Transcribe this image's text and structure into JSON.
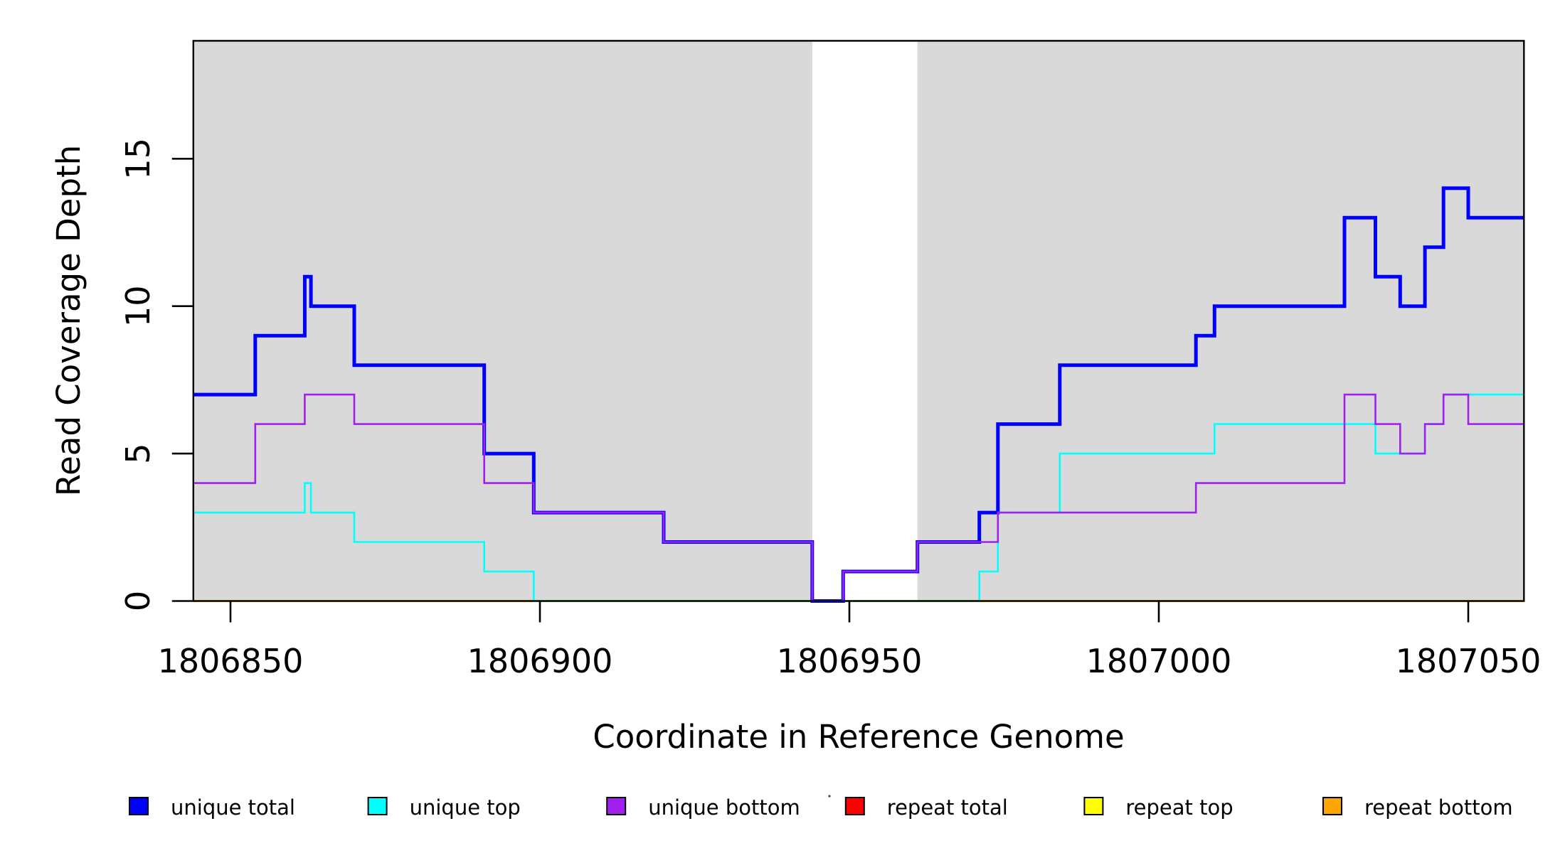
{
  "chart_data": {
    "type": "line",
    "subtype": "step-coverage-plot",
    "title": "",
    "xlabel": "Coordinate in Reference Genome",
    "ylabel": "Read Coverage Depth",
    "xlim": [
      1806844,
      1807059
    ],
    "ylim": [
      0,
      19
    ],
    "grid": false,
    "x_ticks": [
      1806850,
      1806900,
      1806950,
      1807000,
      1807050
    ],
    "x_tick_labels": [
      "1806850",
      "1806900",
      "1806950",
      "1807000",
      "1807050"
    ],
    "y_ticks": [
      0,
      5,
      10,
      15
    ],
    "y_tick_labels": [
      "0",
      "5",
      "10",
      "15"
    ],
    "background_color": "#ffffff",
    "panel_color": "#d9d9d9",
    "shaded_regions": [
      {
        "from": 1806844,
        "to": 1806944
      },
      {
        "from": 1806961,
        "to": 1807059
      }
    ],
    "series": [
      {
        "name": "unique total",
        "color": "#0000ff",
        "width": 5,
        "x": [
          1806844,
          1806854,
          1806862,
          1806863,
          1806870,
          1806891,
          1806899,
          1806920,
          1806944,
          1806949,
          1806961,
          1806971,
          1806974,
          1806984,
          1807006,
          1807009,
          1807030,
          1807035,
          1807039,
          1807043,
          1807046,
          1807050
        ],
        "y": [
          7,
          9,
          11,
          10,
          8,
          5,
          3,
          2,
          0,
          1,
          2,
          3,
          6,
          8,
          9,
          10,
          13,
          11,
          10,
          12,
          14,
          13
        ]
      },
      {
        "name": "unique top",
        "color": "#00ffff",
        "width": 2.6,
        "x": [
          1806844,
          1806862,
          1806863,
          1806870,
          1806891,
          1806899,
          1806971,
          1806974,
          1806984,
          1807009,
          1807035,
          1807043,
          1807046
        ],
        "y": [
          3,
          4,
          3,
          2,
          1,
          0,
          1,
          3,
          5,
          6,
          5,
          6,
          7
        ]
      },
      {
        "name": "unique bottom",
        "color": "#a020f0",
        "width": 2.6,
        "x": [
          1806844,
          1806854,
          1806862,
          1806870,
          1806891,
          1806899,
          1806920,
          1806944,
          1806949,
          1806961,
          1806974,
          1807006,
          1807030,
          1807035,
          1807039,
          1807043,
          1807046,
          1807050
        ],
        "y": [
          4,
          6,
          7,
          6,
          4,
          3,
          2,
          0,
          1,
          2,
          3,
          4,
          7,
          6,
          5,
          6,
          7,
          6
        ]
      },
      {
        "name": "repeat total",
        "color": "#ff0000",
        "width": 3,
        "x": [
          1806844
        ],
        "y": [
          0
        ]
      },
      {
        "name": "repeat top",
        "color": "#ffff00",
        "width": 3,
        "x": [
          1806844
        ],
        "y": [
          0
        ]
      },
      {
        "name": "repeat bottom",
        "color": "#ffa500",
        "width": 3,
        "x": [
          1806844
        ],
        "y": [
          0
        ]
      }
    ],
    "draw_order": [
      "repeat total",
      "repeat top",
      "repeat bottom",
      "unique total",
      "unique top",
      "unique bottom"
    ],
    "legend": {
      "position": "bottom",
      "entries": [
        {
          "label": "unique total",
          "color": "#0000ff"
        },
        {
          "label": "unique top",
          "color": "#00ffff"
        },
        {
          "label": "unique bottom",
          "color": "#a020f0"
        },
        {
          "label": "repeat total",
          "color": "#ff0000"
        },
        {
          "label": "repeat top",
          "color": "#ffff00"
        },
        {
          "label": "repeat bottom",
          "color": "#ffa500"
        }
      ]
    }
  }
}
